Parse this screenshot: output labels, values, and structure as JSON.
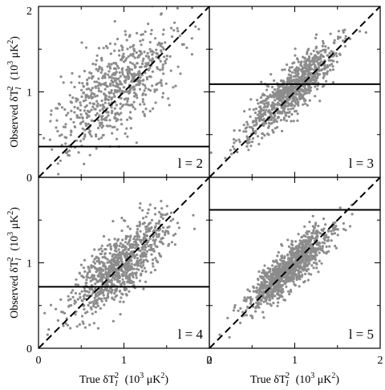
{
  "chart_data": [
    {
      "type": "scatter",
      "panel_label": "l = 2",
      "xlim": [
        0,
        2
      ],
      "ylim": [
        0,
        2
      ],
      "x_ticks": [],
      "y_ticks": [
        "0",
        "1",
        "2"
      ],
      "ylabel_text": "Observed δT",
      "ylabel_sub": "l",
      "ylabel_sup": "2",
      "ylabel_units_pre": "(10",
      "ylabel_units_sup": "3",
      "ylabel_units_post": "μK",
      "ylabel_units_sup2": "2",
      "ylabel_units_close": ")",
      "threshold": 0.36,
      "scatter": {
        "n": 700,
        "seed": 11,
        "center": [
          0.9,
          1.05
        ],
        "spread_along": 0.42,
        "spread_perp": 0.21,
        "slope": 1.0
      },
      "diagonal": true
    },
    {
      "type": "scatter",
      "panel_label": "l = 3",
      "xlim": [
        0,
        2
      ],
      "ylim": [
        0,
        2
      ],
      "x_ticks": [],
      "y_ticks": [],
      "threshold": 1.09,
      "scatter": {
        "n": 900,
        "seed": 23,
        "center": [
          0.95,
          1.0
        ],
        "spread_along": 0.37,
        "spread_perp": 0.1,
        "slope": 1.0
      },
      "diagonal": true
    },
    {
      "type": "scatter",
      "panel_label": "l = 4",
      "xlim": [
        0,
        2
      ],
      "ylim": [
        0,
        2
      ],
      "x_ticks": [
        "0",
        "1",
        "2"
      ],
      "y_ticks": [
        "0",
        "1"
      ],
      "xlabel_text": "True δT",
      "xlabel_sub": "l",
      "xlabel_sup": "2",
      "xlabel_units_pre": "(10",
      "xlabel_units_sup": "3",
      "xlabel_units_post": "μK",
      "xlabel_units_sup2": "2",
      "xlabel_units_close": ")",
      "ylabel_text": "Observed δT",
      "ylabel_sub": "l",
      "ylabel_sup": "2",
      "ylabel_units_pre": "(10",
      "ylabel_units_sup": "3",
      "ylabel_units_post": "μK",
      "ylabel_units_sup2": "2",
      "ylabel_units_close": ")",
      "threshold": 0.72,
      "scatter": {
        "n": 900,
        "seed": 37,
        "center": [
          0.95,
          0.97
        ],
        "spread_along": 0.36,
        "spread_perp": 0.14,
        "slope": 1.0
      },
      "diagonal": true
    },
    {
      "type": "scatter",
      "panel_label": "l = 5",
      "xlim": [
        0,
        2
      ],
      "ylim": [
        0,
        2
      ],
      "x_ticks": [
        "0",
        "1",
        "2"
      ],
      "y_ticks": [],
      "xlabel_text": "True δT",
      "xlabel_sub": "l",
      "xlabel_sup": "2",
      "xlabel_units_pre": "(10",
      "xlabel_units_sup": "3",
      "xlabel_units_post": "μK",
      "xlabel_units_sup2": "2",
      "xlabel_units_close": ")",
      "threshold": 1.62,
      "scatter": {
        "n": 1100,
        "seed": 53,
        "center": [
          0.95,
          0.95
        ],
        "spread_along": 0.33,
        "spread_perp": 0.09,
        "slope": 1.0
      },
      "diagonal": true
    }
  ]
}
